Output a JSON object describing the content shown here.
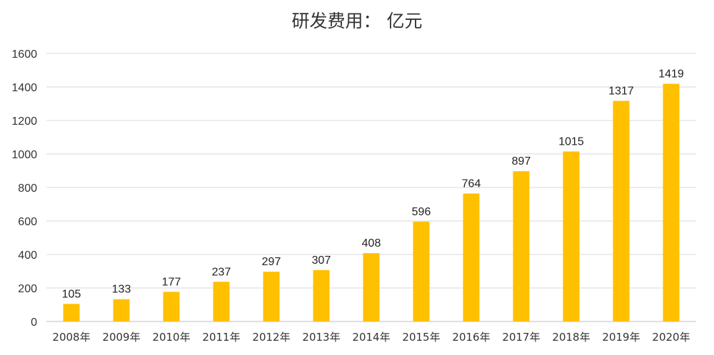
{
  "chart_data": {
    "type": "bar",
    "title": "研发费用：  亿元",
    "categories": [
      "2008年",
      "2009年",
      "2010年",
      "2011年",
      "2012年",
      "2013年",
      "2014年",
      "2015年",
      "2016年",
      "2017年",
      "2018年",
      "2019年",
      "2020年"
    ],
    "values": [
      105,
      133,
      177,
      237,
      297,
      307,
      408,
      596,
      764,
      897,
      1015,
      1317,
      1419
    ],
    "data_labels": [
      "105",
      "133",
      "177",
      "237",
      "297",
      "307",
      "408",
      "596",
      "764",
      "897",
      "1015",
      "1317",
      "1419"
    ],
    "ylim": [
      0,
      1600
    ],
    "yticks": [
      "0",
      "200",
      "400",
      "600",
      "800",
      "1000",
      "1200",
      "1400",
      "1600"
    ],
    "xlabel": "",
    "ylabel": "",
    "bar_color": "#FFC000",
    "grid": true,
    "legend": "none"
  }
}
